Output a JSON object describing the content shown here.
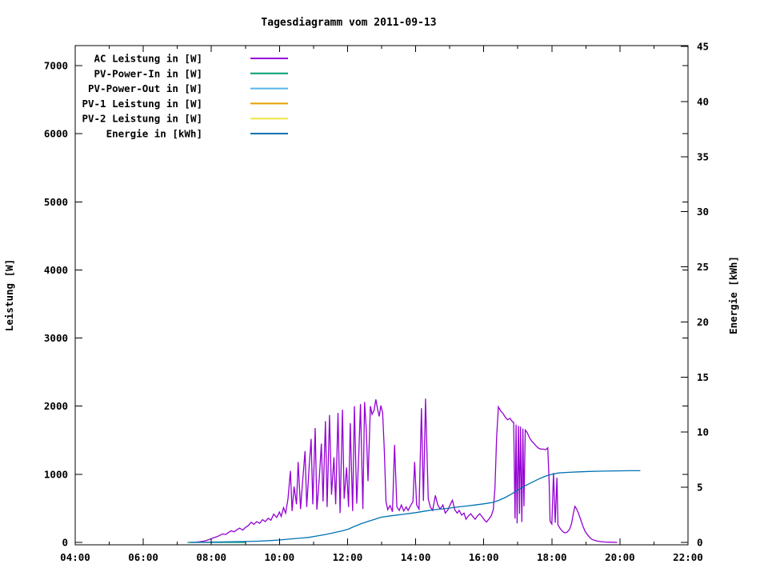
{
  "title": "Tagesdiagramm vom 2011-09-13",
  "axes": {
    "y1_label": "Leistung [W]",
    "y2_label": "Energie [kWh]"
  },
  "chart_data": {
    "type": "line",
    "title": "Tagesdiagramm vom 2011-09-13",
    "xlabel": "",
    "x_axis": {
      "unit": "time",
      "range_hours": [
        4,
        22
      ],
      "major_tick_hours": [
        4,
        6,
        8,
        10,
        12,
        14,
        16,
        18,
        20,
        22
      ],
      "major_tick_labels": [
        "04:00",
        "06:00",
        "08:00",
        "10:00",
        "12:00",
        "14:00",
        "16:00",
        "18:00",
        "20:00",
        "22:00"
      ],
      "minor_tick_hours": [
        5,
        7,
        9,
        11,
        13,
        15,
        17,
        19,
        21
      ]
    },
    "y_axis_left": {
      "label": "Leistung [W]",
      "range": [
        0,
        7300
      ],
      "tick_values": [
        0,
        1000,
        2000,
        3000,
        4000,
        5000,
        6000,
        7000
      ],
      "tick_labels": [
        "0",
        "1000",
        "2000",
        "3000",
        "4000",
        "5000",
        "6000",
        "7000"
      ]
    },
    "y_axis_right": {
      "label": "Energie [kWh]",
      "range": [
        0,
        45
      ],
      "tick_values": [
        0,
        5,
        10,
        15,
        20,
        25,
        30,
        35,
        40,
        45
      ],
      "tick_labels": [
        "0",
        "5",
        "10",
        "15",
        "20",
        "25",
        "30",
        "35",
        "40",
        "45"
      ]
    },
    "grid": false,
    "legend_position": "top-left-inside",
    "series": [
      {
        "name": "AC Leistung in [W]",
        "color": "#9400d3",
        "axis": "left",
        "points": [
          [
            7.33,
            0
          ],
          [
            7.5,
            0
          ],
          [
            7.58,
            5
          ],
          [
            7.67,
            10
          ],
          [
            7.75,
            15
          ],
          [
            7.83,
            25
          ],
          [
            7.92,
            40
          ],
          [
            8.0,
            55
          ],
          [
            8.08,
            70
          ],
          [
            8.17,
            85
          ],
          [
            8.25,
            105
          ],
          [
            8.33,
            125
          ],
          [
            8.42,
            115
          ],
          [
            8.5,
            145
          ],
          [
            8.58,
            170
          ],
          [
            8.67,
            155
          ],
          [
            8.75,
            185
          ],
          [
            8.83,
            210
          ],
          [
            8.92,
            180
          ],
          [
            9.0,
            220
          ],
          [
            9.08,
            245
          ],
          [
            9.17,
            295
          ],
          [
            9.25,
            265
          ],
          [
            9.33,
            305
          ],
          [
            9.42,
            280
          ],
          [
            9.5,
            335
          ],
          [
            9.58,
            305
          ],
          [
            9.67,
            355
          ],
          [
            9.75,
            325
          ],
          [
            9.83,
            415
          ],
          [
            9.92,
            365
          ],
          [
            10.0,
            445
          ],
          [
            10.05,
            380
          ],
          [
            10.12,
            510
          ],
          [
            10.18,
            430
          ],
          [
            10.25,
            640
          ],
          [
            10.32,
            1050
          ],
          [
            10.37,
            460
          ],
          [
            10.43,
            820
          ],
          [
            10.5,
            560
          ],
          [
            10.55,
            1180
          ],
          [
            10.62,
            490
          ],
          [
            10.68,
            900
          ],
          [
            10.75,
            1340
          ],
          [
            10.8,
            520
          ],
          [
            10.87,
            1100
          ],
          [
            10.93,
            1520
          ],
          [
            10.98,
            560
          ],
          [
            11.05,
            1680
          ],
          [
            11.1,
            480
          ],
          [
            11.17,
            940
          ],
          [
            11.23,
            1450
          ],
          [
            11.28,
            600
          ],
          [
            11.35,
            1780
          ],
          [
            11.4,
            520
          ],
          [
            11.47,
            1870
          ],
          [
            11.53,
            700
          ],
          [
            11.6,
            1250
          ],
          [
            11.65,
            560
          ],
          [
            11.72,
            1900
          ],
          [
            11.78,
            430
          ],
          [
            11.85,
            1950
          ],
          [
            11.9,
            640
          ],
          [
            11.97,
            1100
          ],
          [
            12.03,
            520
          ],
          [
            12.08,
            1750
          ],
          [
            12.15,
            460
          ],
          [
            12.2,
            2000
          ],
          [
            12.27,
            570
          ],
          [
            12.33,
            1300
          ],
          [
            12.38,
            2030
          ],
          [
            12.45,
            490
          ],
          [
            12.5,
            2060
          ],
          [
            12.55,
            1650
          ],
          [
            12.6,
            900
          ],
          [
            12.67,
            2000
          ],
          [
            12.72,
            1880
          ],
          [
            12.78,
            1940
          ],
          [
            12.83,
            2100
          ],
          [
            12.88,
            1960
          ],
          [
            12.93,
            1850
          ],
          [
            12.98,
            2010
          ],
          [
            13.03,
            1900
          ],
          [
            13.08,
            1350
          ],
          [
            13.13,
            600
          ],
          [
            13.18,
            480
          ],
          [
            13.25,
            540
          ],
          [
            13.32,
            450
          ],
          [
            13.38,
            1430
          ],
          [
            13.45,
            520
          ],
          [
            13.52,
            470
          ],
          [
            13.58,
            550
          ],
          [
            13.65,
            460
          ],
          [
            13.72,
            520
          ],
          [
            13.78,
            470
          ],
          [
            13.85,
            540
          ],
          [
            13.92,
            600
          ],
          [
            13.97,
            1180
          ],
          [
            14.03,
            550
          ],
          [
            14.1,
            490
          ],
          [
            14.17,
            1970
          ],
          [
            14.23,
            610
          ],
          [
            14.29,
            2110
          ],
          [
            14.37,
            640
          ],
          [
            14.43,
            520
          ],
          [
            14.5,
            470
          ],
          [
            14.58,
            690
          ],
          [
            14.65,
            550
          ],
          [
            14.72,
            490
          ],
          [
            14.8,
            550
          ],
          [
            14.87,
            430
          ],
          [
            14.95,
            480
          ],
          [
            15.02,
            560
          ],
          [
            15.08,
            620
          ],
          [
            15.15,
            480
          ],
          [
            15.22,
            430
          ],
          [
            15.28,
            470
          ],
          [
            15.35,
            400
          ],
          [
            15.42,
            430
          ],
          [
            15.48,
            340
          ],
          [
            15.55,
            390
          ],
          [
            15.62,
            420
          ],
          [
            15.68,
            380
          ],
          [
            15.75,
            340
          ],
          [
            15.82,
            390
          ],
          [
            15.88,
            420
          ],
          [
            15.95,
            380
          ],
          [
            16.02,
            330
          ],
          [
            16.08,
            300
          ],
          [
            16.15,
            340
          ],
          [
            16.22,
            390
          ],
          [
            16.28,
            480
          ],
          [
            16.33,
            800
          ],
          [
            16.38,
            1550
          ],
          [
            16.43,
            1990
          ],
          [
            16.5,
            1930
          ],
          [
            16.57,
            1890
          ],
          [
            16.63,
            1840
          ],
          [
            16.7,
            1800
          ],
          [
            16.77,
            1820
          ],
          [
            16.83,
            1780
          ],
          [
            16.88,
            1760
          ],
          [
            16.92,
            350
          ],
          [
            16.95,
            1730
          ],
          [
            16.98,
            280
          ],
          [
            17.02,
            1710
          ],
          [
            17.05,
            420
          ],
          [
            17.08,
            1700
          ],
          [
            17.12,
            300
          ],
          [
            17.15,
            1670
          ],
          [
            17.18,
            530
          ],
          [
            17.22,
            1650
          ],
          [
            17.28,
            1610
          ],
          [
            17.35,
            1530
          ],
          [
            17.42,
            1480
          ],
          [
            17.48,
            1450
          ],
          [
            17.55,
            1410
          ],
          [
            17.62,
            1380
          ],
          [
            17.68,
            1370
          ],
          [
            17.75,
            1370
          ],
          [
            17.82,
            1360
          ],
          [
            17.88,
            1390
          ],
          [
            17.92,
            900
          ],
          [
            17.95,
            310
          ],
          [
            18.0,
            270
          ],
          [
            18.05,
            1020
          ],
          [
            18.1,
            290
          ],
          [
            18.15,
            950
          ],
          [
            18.18,
            260
          ],
          [
            18.25,
            200
          ],
          [
            18.32,
            160
          ],
          [
            18.38,
            140
          ],
          [
            18.45,
            150
          ],
          [
            18.52,
            190
          ],
          [
            18.58,
            280
          ],
          [
            18.63,
            420
          ],
          [
            18.68,
            530
          ],
          [
            18.73,
            490
          ],
          [
            18.78,
            430
          ],
          [
            18.85,
            330
          ],
          [
            18.92,
            230
          ],
          [
            18.98,
            160
          ],
          [
            19.05,
            110
          ],
          [
            19.12,
            70
          ],
          [
            19.18,
            45
          ],
          [
            19.25,
            30
          ],
          [
            19.33,
            20
          ],
          [
            19.42,
            12
          ],
          [
            19.55,
            6
          ],
          [
            19.7,
            3
          ],
          [
            19.92,
            0
          ]
        ]
      },
      {
        "name": "PV-Power-In in [W]",
        "color": "#009e73",
        "axis": "left",
        "points": [
          [
            7.3,
            0
          ],
          [
            7.8,
            0
          ],
          [
            8.4,
            0
          ],
          [
            9.0,
            0
          ]
        ]
      },
      {
        "name": "PV-Power-Out in [W]",
        "color": "#56b4e9",
        "axis": "left",
        "points": []
      },
      {
        "name": "PV-1 Leistung in [W]",
        "color": "#e69f00",
        "axis": "left",
        "points": []
      },
      {
        "name": "PV-2 Leistung in [W]",
        "color": "#f0e442",
        "axis": "left",
        "points": []
      },
      {
        "name": "Energie in [kWh]",
        "color": "#0072b2",
        "axis": "right",
        "points": [
          [
            7.4,
            0
          ],
          [
            7.7,
            0.01
          ],
          [
            8.0,
            0.02
          ],
          [
            8.5,
            0.05
          ],
          [
            9.0,
            0.08
          ],
          [
            9.35,
            0.11
          ],
          [
            9.7,
            0.16
          ],
          [
            10.0,
            0.22
          ],
          [
            10.35,
            0.32
          ],
          [
            10.85,
            0.45
          ],
          [
            11.1,
            0.58
          ],
          [
            11.35,
            0.72
          ],
          [
            11.6,
            0.88
          ],
          [
            11.85,
            1.05
          ],
          [
            12.02,
            1.2
          ],
          [
            12.2,
            1.45
          ],
          [
            12.4,
            1.7
          ],
          [
            12.6,
            1.9
          ],
          [
            12.8,
            2.1
          ],
          [
            12.98,
            2.28
          ],
          [
            13.2,
            2.38
          ],
          [
            13.45,
            2.48
          ],
          [
            13.7,
            2.58
          ],
          [
            14.0,
            2.7
          ],
          [
            14.3,
            2.85
          ],
          [
            14.6,
            2.98
          ],
          [
            14.9,
            3.08
          ],
          [
            15.2,
            3.2
          ],
          [
            15.5,
            3.3
          ],
          [
            15.75,
            3.4
          ],
          [
            16.0,
            3.5
          ],
          [
            16.25,
            3.62
          ],
          [
            16.45,
            3.82
          ],
          [
            16.65,
            4.1
          ],
          [
            16.85,
            4.45
          ],
          [
            17.05,
            4.85
          ],
          [
            17.25,
            5.2
          ],
          [
            17.45,
            5.5
          ],
          [
            17.65,
            5.8
          ],
          [
            17.85,
            6.05
          ],
          [
            18.0,
            6.18
          ],
          [
            18.2,
            6.3
          ],
          [
            18.5,
            6.36
          ],
          [
            18.8,
            6.4
          ],
          [
            19.1,
            6.44
          ],
          [
            19.5,
            6.47
          ],
          [
            19.9,
            6.49
          ],
          [
            20.3,
            6.5
          ],
          [
            20.6,
            6.5
          ]
        ]
      }
    ]
  }
}
